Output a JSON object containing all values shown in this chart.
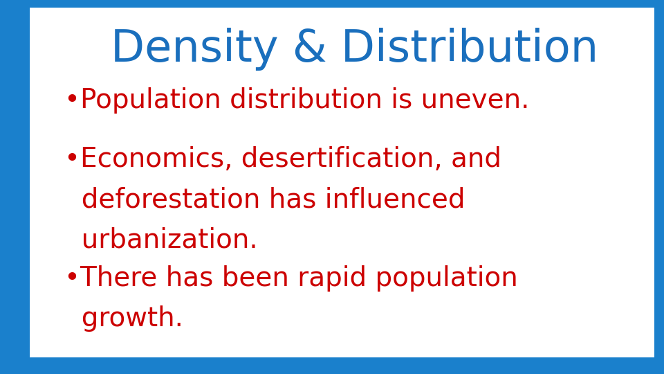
{
  "title": "Density & Distribution",
  "title_color": "#1a6fbd",
  "title_fontsize": 46,
  "bullet_color": "#cc0000",
  "bullet_fontsize": 28,
  "background_color": "#ffffff",
  "border_color": "#1a80cc",
  "border_linewidth": 18,
  "bullet1": "•Population distribution is uneven.",
  "bullet2_line1": "•Economics, desertification, and",
  "bullet2_line2": "  deforestation has influenced",
  "bullet2_line3": "  urbanization.",
  "bullet3_line1": "•There has been rapid population",
  "bullet3_line2": "  growth.",
  "figsize": [
    9.6,
    5.4
  ],
  "dpi": 100
}
